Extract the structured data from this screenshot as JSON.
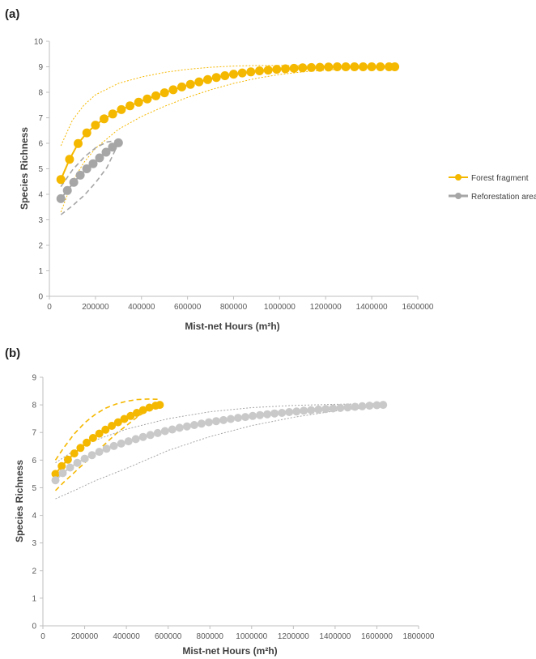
{
  "colors": {
    "forest": "#F5B800",
    "reforestation": "#A6A6A6",
    "reforestation_b": "#C9C9C9",
    "axis": "#bfbfbf",
    "text": "#404040"
  },
  "chart_data": [
    {
      "type": "line",
      "panel_label": "(a)",
      "xlabel": "Mist-net Hours (m²h)",
      "ylabel": "Species Richness",
      "xlim": [
        0,
        1600000
      ],
      "ylim": [
        0,
        10
      ],
      "x_ticks": [
        "0",
        "200000",
        "400000",
        "600000",
        "800000",
        "1000000",
        "1200000",
        "1400000",
        "1600000"
      ],
      "y_ticks": [
        "0",
        "1",
        "2",
        "3",
        "4",
        "5",
        "6",
        "7",
        "8",
        "9",
        "10"
      ],
      "legend": {
        "placement": "right",
        "entries": [
          "Forest fragment",
          "Reforestation area"
        ]
      },
      "series": [
        {
          "name": "Forest fragment",
          "color_key": "forest",
          "style": "solid",
          "x": [
            50000,
            87500,
            125000,
            162500,
            200000,
            237500,
            275000,
            312500,
            350000,
            387500,
            425000,
            462500,
            500000,
            537500,
            575000,
            612500,
            650000,
            687500,
            725000,
            762500,
            800000,
            837500,
            875000,
            912500,
            950000,
            987500,
            1025000,
            1062500,
            1100000,
            1137500,
            1175000,
            1212500,
            1250000,
            1287500,
            1325000,
            1362500,
            1400000,
            1437500,
            1475000,
            1500000
          ],
          "values": [
            4.58,
            5.37,
            5.99,
            6.41,
            6.71,
            6.96,
            7.15,
            7.32,
            7.47,
            7.61,
            7.74,
            7.86,
            7.98,
            8.1,
            8.21,
            8.31,
            8.41,
            8.5,
            8.58,
            8.65,
            8.71,
            8.76,
            8.8,
            8.84,
            8.87,
            8.9,
            8.92,
            8.94,
            8.96,
            8.97,
            8.98,
            8.99,
            9.0,
            9.0,
            9.0,
            9.0,
            9.0,
            9.0,
            9.0,
            9.0
          ]
        },
        {
          "name": "Reforestation area",
          "color_key": "reforestation",
          "style": "solid",
          "x": [
            50000,
            78000,
            106000,
            134000,
            162000,
            190000,
            218000,
            246000,
            274000,
            300000
          ],
          "values": [
            3.83,
            4.15,
            4.47,
            4.75,
            5.0,
            5.2,
            5.43,
            5.65,
            5.85,
            6.02
          ]
        },
        {
          "name": "",
          "color_key": "forest",
          "style": "dotted-bound",
          "x": [
            50000,
            100000,
            150000,
            200000,
            300000,
            400000,
            500000,
            600000,
            700000,
            800000,
            900000,
            1000000,
            1100000,
            1200000,
            1300000,
            1400000,
            1500000
          ],
          "values": [
            5.9,
            6.9,
            7.5,
            7.9,
            8.35,
            8.6,
            8.78,
            8.9,
            8.98,
            9.03,
            9.05,
            9.05,
            9.04,
            9.03,
            9.02,
            9.01,
            9.0
          ]
        },
        {
          "name": "",
          "color_key": "forest",
          "style": "dotted-bound",
          "x": [
            50000,
            100000,
            150000,
            200000,
            300000,
            400000,
            500000,
            600000,
            700000,
            800000,
            900000,
            1000000,
            1100000,
            1200000,
            1300000,
            1400000,
            1500000
          ],
          "values": [
            3.3,
            4.5,
            5.25,
            5.8,
            6.55,
            7.05,
            7.45,
            7.8,
            8.1,
            8.35,
            8.55,
            8.7,
            8.8,
            8.87,
            8.93,
            8.97,
            9.0
          ]
        },
        {
          "name": "",
          "color_key": "reforestation",
          "style": "dashed-bound",
          "x": [
            50000,
            100000,
            150000,
            200000,
            250000,
            300000
          ],
          "values": [
            4.3,
            4.95,
            5.45,
            5.82,
            6.05,
            6.12
          ]
        },
        {
          "name": "",
          "color_key": "reforestation",
          "style": "dashed-bound",
          "x": [
            50000,
            100000,
            150000,
            200000,
            250000,
            300000
          ],
          "values": [
            3.2,
            3.55,
            3.95,
            4.45,
            5.05,
            6.0
          ]
        }
      ]
    },
    {
      "type": "line",
      "panel_label": "(b)",
      "xlabel": "Mist-net Hours (m²h)",
      "ylabel": "Species Richness",
      "xlim": [
        0,
        1800000
      ],
      "ylim": [
        0,
        9
      ],
      "x_ticks": [
        "0",
        "200000",
        "400000",
        "600000",
        "800000",
        "1000000",
        "1200000",
        "1400000",
        "1600000",
        "1800000"
      ],
      "y_ticks": [
        "0",
        "1",
        "2",
        "3",
        "4",
        "5",
        "6",
        "7",
        "8",
        "9"
      ],
      "series": [
        {
          "name": "Forest fragment",
          "color_key": "forest",
          "style": "solid",
          "x": [
            60000,
            90000,
            120000,
            150000,
            180000,
            210000,
            240000,
            270000,
            300000,
            330000,
            360000,
            390000,
            420000,
            450000,
            480000,
            510000,
            540000,
            560000
          ],
          "values": [
            5.5,
            5.78,
            6.02,
            6.24,
            6.44,
            6.63,
            6.8,
            6.96,
            7.1,
            7.24,
            7.37,
            7.49,
            7.6,
            7.71,
            7.81,
            7.9,
            7.97,
            8.0
          ]
        },
        {
          "name": "Reforestation area",
          "color_key": "reforestation_b",
          "style": "solid",
          "x": [
            60000,
            95000,
            130000,
            165000,
            200000,
            235000,
            270000,
            305000,
            340000,
            375000,
            410000,
            445000,
            480000,
            515000,
            550000,
            585000,
            620000,
            655000,
            690000,
            725000,
            760000,
            795000,
            830000,
            865000,
            900000,
            935000,
            970000,
            1005000,
            1040000,
            1075000,
            1110000,
            1145000,
            1180000,
            1215000,
            1250000,
            1285000,
            1320000,
            1355000,
            1390000,
            1425000,
            1460000,
            1495000,
            1530000,
            1565000,
            1600000,
            1630000
          ],
          "values": [
            5.27,
            5.53,
            5.73,
            5.9,
            6.05,
            6.18,
            6.3,
            6.41,
            6.51,
            6.6,
            6.68,
            6.76,
            6.84,
            6.91,
            6.98,
            7.05,
            7.11,
            7.17,
            7.22,
            7.27,
            7.32,
            7.37,
            7.41,
            7.45,
            7.49,
            7.53,
            7.56,
            7.6,
            7.63,
            7.66,
            7.69,
            7.71,
            7.74,
            7.76,
            7.79,
            7.81,
            7.83,
            7.85,
            7.87,
            7.89,
            7.91,
            7.93,
            7.95,
            7.97,
            7.99,
            8.0
          ]
        },
        {
          "name": "",
          "color_key": "forest",
          "style": "dashed-bound",
          "x": [
            60000,
            100000,
            150000,
            200000,
            250000,
            300000,
            350000,
            400000,
            450000,
            500000,
            560000
          ],
          "values": [
            6.0,
            6.45,
            6.95,
            7.35,
            7.65,
            7.88,
            8.03,
            8.13,
            8.19,
            8.21,
            8.2
          ]
        },
        {
          "name": "",
          "color_key": "forest",
          "style": "dashed-bound",
          "x": [
            60000,
            100000,
            150000,
            200000,
            250000,
            300000,
            350000,
            400000,
            450000,
            500000,
            560000
          ],
          "values": [
            4.9,
            5.2,
            5.55,
            5.9,
            6.25,
            6.6,
            6.95,
            7.25,
            7.55,
            7.8,
            8.0
          ]
        },
        {
          "name": "",
          "color_key": "reforestation",
          "style": "dotted-bound",
          "x": [
            60000,
            150000,
            250000,
            400000,
            600000,
            800000,
            1000000,
            1200000,
            1400000,
            1600000,
            1630000
          ],
          "values": [
            5.9,
            6.35,
            6.72,
            7.12,
            7.5,
            7.75,
            7.9,
            7.98,
            8.02,
            8.04,
            8.03
          ]
        },
        {
          "name": "",
          "color_key": "reforestation",
          "style": "dotted-bound",
          "x": [
            60000,
            150000,
            250000,
            400000,
            600000,
            800000,
            1000000,
            1200000,
            1400000,
            1600000,
            1630000
          ],
          "values": [
            4.6,
            4.9,
            5.25,
            5.7,
            6.35,
            6.85,
            7.25,
            7.55,
            7.78,
            7.95,
            8.0
          ]
        }
      ]
    }
  ]
}
